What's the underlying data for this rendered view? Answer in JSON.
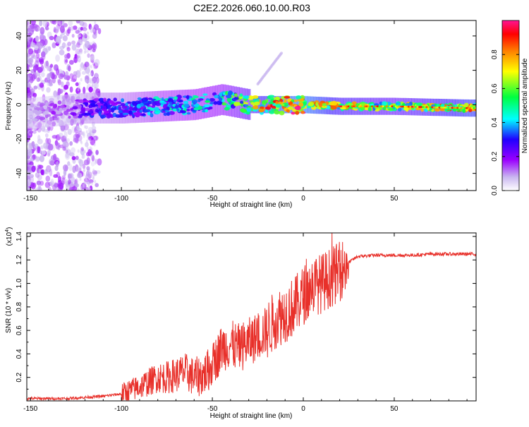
{
  "title": "C2E2.2026.060.10.00.R03",
  "chart_data": [
    {
      "type": "heatmap",
      "xlabel": "Height of straight line (km)",
      "ylabel": "Frequency (Hz)",
      "xlim": [
        -152,
        95
      ],
      "ylim": [
        -50,
        49
      ],
      "xticks": [
        -150,
        -100,
        -50,
        0,
        50
      ],
      "yticks": [
        -40,
        -20,
        0,
        20,
        40
      ],
      "grid": false,
      "colorbar": {
        "label": "Normalized spectral amplitude",
        "range": [
          0,
          1
        ],
        "ticks": [
          "0.0",
          "0.2",
          "0.4",
          "0.6",
          "0.8"
        ],
        "colors": [
          "#ffffff",
          "#c9b6f0",
          "#9a00ff",
          "#2000ff",
          "#00ffff",
          "#00ff40",
          "#ffff00",
          "#ff8000",
          "#ff0000",
          "#ff1493"
        ]
      },
      "ridge": [
        {
          "x": -150,
          "freq": -5,
          "amp": 0.1
        },
        {
          "x": -130,
          "freq": -3,
          "amp": 0.2
        },
        {
          "x": -120,
          "freq": -2,
          "amp": 0.3
        },
        {
          "x": -100,
          "freq": -2,
          "amp": 0.35
        },
        {
          "x": -80,
          "freq": -1,
          "amp": 0.45
        },
        {
          "x": -60,
          "freq": 0,
          "amp": 0.5
        },
        {
          "x": -45,
          "freq": 3,
          "amp": 0.55
        },
        {
          "x": -30,
          "freq": 0,
          "amp": 0.7
        },
        {
          "x": -20,
          "freq": 0,
          "amp": 0.9
        },
        {
          "x": 0,
          "freq": 0,
          "amp": 1.0
        },
        {
          "x": 20,
          "freq": -1,
          "amp": 0.8
        },
        {
          "x": 50,
          "freq": -1,
          "amp": 0.7
        },
        {
          "x": 90,
          "freq": -2,
          "amp": 0.9
        }
      ],
      "streak": [
        {
          "x": -25,
          "freq": 12
        },
        {
          "x": -12,
          "freq": 30
        }
      ]
    },
    {
      "type": "line",
      "xlabel": "Height of straight line (km)",
      "ylabel": "SNR (10 * v/v)",
      "y_multiplier": "(x10",
      "y_multiplier_exp": "4",
      "xlim": [
        -152,
        95
      ],
      "ylim": [
        0,
        1.43
      ],
      "xticks": [
        -150,
        -100,
        -50,
        0,
        50
      ],
      "yticks": [
        0.2,
        0.4,
        0.6,
        0.8,
        1.0,
        1.2,
        1.4
      ],
      "grid": false,
      "series_color": "#e8302a",
      "x": [
        -152,
        -140,
        -130,
        -120,
        -110,
        -100,
        -95,
        -90,
        -85,
        -80,
        -75,
        -70,
        -65,
        -60,
        -55,
        -50,
        -45,
        -40,
        -35,
        -30,
        -25,
        -20,
        -15,
        -10,
        -5,
        0,
        5,
        10,
        15,
        20,
        25,
        30,
        40,
        50,
        60,
        70,
        80,
        90,
        95
      ],
      "y": [
        0.02,
        0.02,
        0.02,
        0.03,
        0.04,
        0.06,
        0.09,
        0.12,
        0.16,
        0.2,
        0.2,
        0.22,
        0.25,
        0.2,
        0.22,
        0.3,
        0.45,
        0.48,
        0.45,
        0.5,
        0.55,
        0.6,
        0.7,
        0.75,
        0.8,
        0.9,
        0.98,
        1.0,
        1.05,
        1.1,
        1.18,
        1.23,
        1.24,
        1.24,
        1.24,
        1.25,
        1.25,
        1.25,
        1.25
      ]
    }
  ]
}
